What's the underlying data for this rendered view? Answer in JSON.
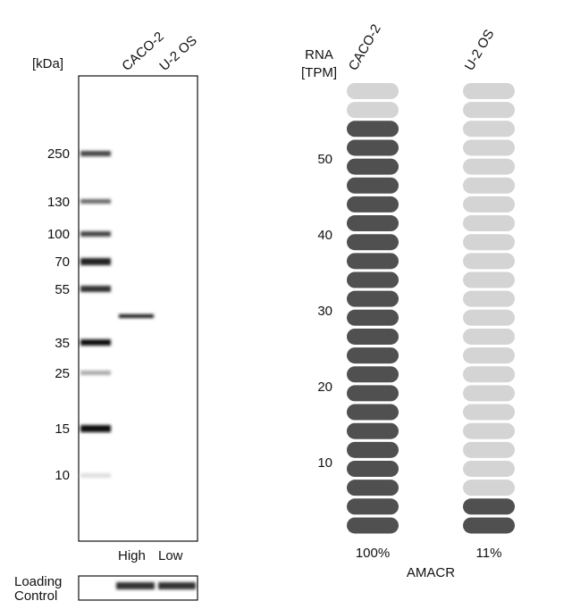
{
  "blot": {
    "unit_label": "[kDa]",
    "lanes": [
      "CACO-2",
      "U-2 OS"
    ],
    "markers": [
      "250",
      "130",
      "100",
      "70",
      "55",
      "35",
      "25",
      "15",
      "10"
    ],
    "levels": [
      "High",
      "Low"
    ],
    "loading_control": [
      "Loading",
      "Control"
    ]
  },
  "rna": {
    "axis_label": [
      "RNA",
      "[TPM]"
    ],
    "yticks": [
      10,
      20,
      30,
      40,
      50
    ],
    "pills": 24,
    "columns": [
      {
        "name": "CACO-2",
        "filled": 22,
        "percent": "100%"
      },
      {
        "name": "U-2 OS",
        "filled": 2,
        "percent": "11%"
      }
    ],
    "gene": "AMACR"
  }
}
